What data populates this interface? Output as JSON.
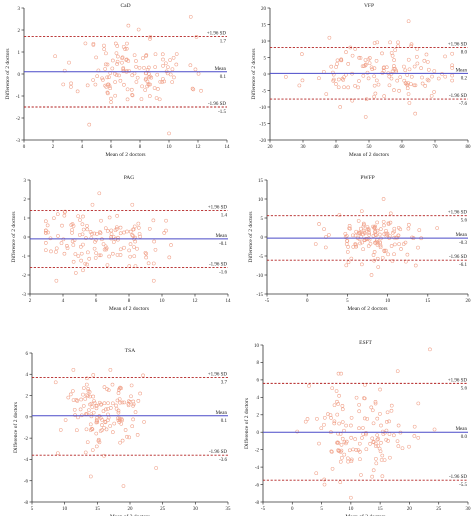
{
  "colors": {
    "mean_line": "#4a4ac8",
    "loa_line": "#b22222",
    "points": "#f0a088",
    "axis": "#333333"
  },
  "chart_data": [
    {
      "type": "scatter",
      "title": "CaD",
      "xlabel": "Mean of 2 doctors",
      "ylabel": "Difference of 2 doctors",
      "xlim": [
        0,
        14
      ],
      "ylim": [
        -3,
        3
      ],
      "xticks": [
        0,
        2,
        4,
        6,
        8,
        10,
        12,
        14
      ],
      "yticks": [
        -3,
        -2,
        -1,
        0,
        1,
        2,
        3
      ],
      "mean": 0.1,
      "upper": 1.7,
      "lower": -1.5,
      "upper_label": "+1.96 SD",
      "upper_value": "1.7",
      "mean_label": "Mean",
      "mean_value": "0.1",
      "lower_label": "-1.96 SD",
      "lower_value": "-1.5",
      "x_center": 7.5,
      "x_spread": 1.9,
      "y_center": 0.1,
      "y_spread": 0.8,
      "n": 140,
      "seed": 11,
      "outliers": [
        [
          11.5,
          2.6
        ],
        [
          10,
          -2.7
        ],
        [
          4.5,
          -2.3
        ],
        [
          7.2,
          2.2
        ]
      ]
    },
    {
      "type": "scatter",
      "title": "VFP",
      "xlabel": "Mean of 2 doctors",
      "ylabel": "Difference of 2 doctors",
      "xlim": [
        20,
        80
      ],
      "ylim": [
        -20,
        20
      ],
      "xticks": [
        20,
        30,
        40,
        50,
        60,
        70,
        80
      ],
      "yticks": [
        -20,
        -15,
        -10,
        -5,
        0,
        5,
        10,
        15,
        20
      ],
      "mean": 0.2,
      "upper": 8.0,
      "lower": -7.6,
      "upper_label": "+1.96 SD",
      "upper_value": "8.0",
      "mean_label": "Mean",
      "mean_value": "0.2",
      "lower_label": "-1.96 SD",
      "lower_value": "-7.6",
      "x_center": 53,
      "x_spread": 11,
      "y_center": 0.2,
      "y_spread": 4,
      "n": 140,
      "seed": 23,
      "outliers": [
        [
          62,
          16
        ],
        [
          49,
          -13
        ],
        [
          38,
          11
        ],
        [
          64,
          -12
        ]
      ]
    },
    {
      "type": "scatter",
      "title": "PAG",
      "xlabel": "Mean of 2 doctors",
      "ylabel": "Difference of 2 doctors",
      "xlim": [
        2,
        14
      ],
      "ylim": [
        -3,
        3
      ],
      "xticks": [
        2,
        4,
        6,
        8,
        10,
        12,
        14
      ],
      "yticks": [
        -3,
        -2,
        -1,
        0,
        1,
        2,
        3
      ],
      "mean": -0.1,
      "upper": 1.4,
      "lower": -1.6,
      "upper_label": "+1.96 SD",
      "upper_value": "1.4",
      "mean_label": "Mean",
      "mean_value": "-0.1",
      "lower_label": "-1.96 SD",
      "lower_value": "-1.6",
      "x_center": 6.2,
      "x_spread": 1.9,
      "y_center": -0.1,
      "y_spread": 0.75,
      "n": 140,
      "seed": 37,
      "outliers": [
        [
          6.2,
          2.3
        ],
        [
          3.6,
          -2.3
        ],
        [
          9.5,
          -2.3
        ],
        [
          8.2,
          1.7
        ]
      ]
    },
    {
      "type": "scatter",
      "title": "PWFP",
      "xlabel": "Mean of 2 doctors",
      "ylabel": "Difference of 2 doctors",
      "xlim": [
        -5,
        20
      ],
      "ylim": [
        -15,
        15
      ],
      "xticks": [
        -5,
        0,
        5,
        10,
        15,
        20
      ],
      "yticks": [
        -15,
        -10,
        -5,
        0,
        5,
        10,
        15
      ],
      "mean": -0.3,
      "upper": 5.6,
      "lower": -6.1,
      "upper_label": "+1.96 SD",
      "upper_value": "5.6",
      "mean_label": "Mean",
      "mean_value": "-0.3",
      "lower_label": "-1.96 SD",
      "lower_value": "-6.1",
      "x_center": 8.5,
      "x_spread": 2.8,
      "y_center": -0.3,
      "y_spread": 3,
      "n": 140,
      "seed": 53,
      "outliers": [
        [
          9.5,
          10
        ],
        [
          8,
          -10
        ],
        [
          13.5,
          -7.5
        ],
        [
          4,
          5.8
        ]
      ]
    },
    {
      "type": "scatter",
      "title": "TSA",
      "xlabel": "Mean of 2 doctors",
      "ylabel": "Difference of 2 doctors",
      "xlim": [
        5,
        35
      ],
      "ylim": [
        -8,
        6
      ],
      "xticks": [
        5,
        10,
        15,
        20,
        25,
        30,
        35
      ],
      "yticks": [
        -8,
        -6,
        -4,
        -2,
        0,
        2,
        4,
        6
      ],
      "mean": 0.1,
      "upper": 3.7,
      "lower": -3.6,
      "upper_label": "+1.96 SD",
      "upper_value": "3.7",
      "mean_label": "Mean",
      "mean_value": "0.1",
      "lower_label": "-1.96 SD",
      "lower_value": "-3.6",
      "x_center": 16,
      "x_spread": 3.3,
      "y_center": 0.3,
      "y_spread": 1.8,
      "n": 140,
      "seed": 71,
      "outliers": [
        [
          19,
          -6.5
        ],
        [
          14,
          -5.6
        ],
        [
          24,
          -4.8
        ],
        [
          22,
          3.9
        ]
      ]
    },
    {
      "type": "scatter",
      "title": "ESFT",
      "xlabel": "Mean of 2 doctors",
      "ylabel": "Difference of 2 doctors",
      "xlim": [
        -5,
        30
      ],
      "ylim": [
        -8,
        10
      ],
      "xticks": [
        -5,
        0,
        5,
        10,
        15,
        20,
        25,
        30
      ],
      "yticks": [
        -8,
        -6,
        -4,
        -2,
        0,
        2,
        4,
        6,
        8,
        10
      ],
      "mean": 0.0,
      "upper": 5.6,
      "lower": -5.5,
      "upper_label": "+1.96 SD",
      "upper_value": "5.6",
      "mean_label": "Mean",
      "mean_value": "0.0",
      "lower_label": "-1.96 SD",
      "lower_value": "-5.5",
      "x_center": 12,
      "x_spread": 4.5,
      "y_center": 0.0,
      "y_spread": 2.8,
      "n": 140,
      "seed": 89,
      "outliers": [
        [
          23.5,
          9.5
        ],
        [
          10,
          -7.5
        ],
        [
          18,
          7
        ],
        [
          5.5,
          -6
        ]
      ]
    }
  ]
}
